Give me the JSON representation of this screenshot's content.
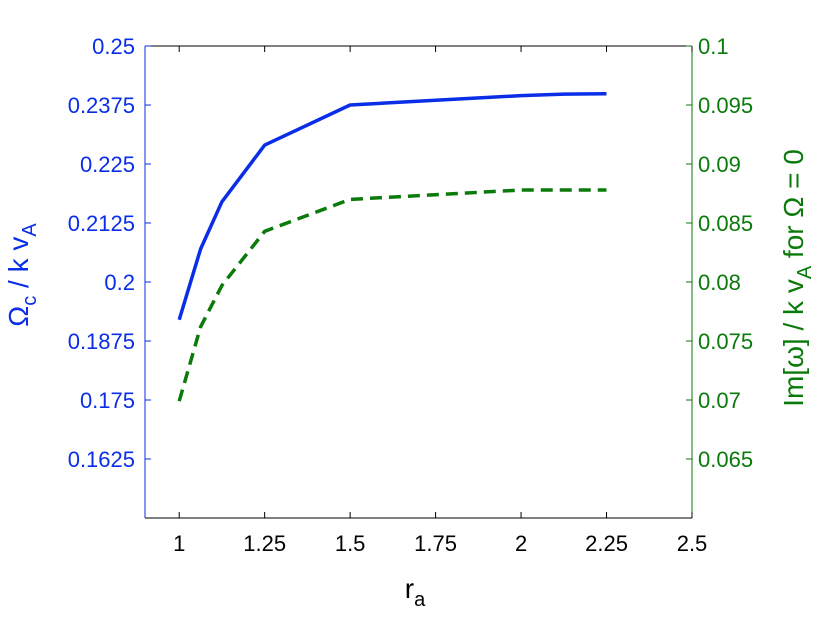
{
  "chart_data": {
    "type": "line",
    "x_ticks": [
      "1",
      "1.25",
      "1.5",
      "1.75",
      "2",
      "2.25",
      "2.5"
    ],
    "xlim": [
      0.9,
      2.5
    ],
    "xlabel": {
      "main": "r",
      "sub": "a"
    },
    "left_axis": {
      "ylim": [
        0.15,
        0.25
      ],
      "ticks": [
        "0.25",
        "0.2375",
        "0.225",
        "0.2125",
        "0.2",
        "0.1875",
        "0.175",
        "0.1625"
      ],
      "label": {
        "p1": "Ω",
        "p1_sub": "c",
        "p2": " / k v",
        "p2_sub": "A"
      },
      "color": "#0a2ee8"
    },
    "right_axis": {
      "ylim": [
        0.06,
        0.1
      ],
      "ticks": [
        "0.1",
        "0.095",
        "0.09",
        "0.085",
        "0.08",
        "0.075",
        "0.07",
        "0.065"
      ],
      "label": {
        "p1": "Im[ω] / k v",
        "p1_sub": "A",
        "p2": " for Ω = 0"
      },
      "color": "#0a7a0a"
    },
    "series": [
      {
        "axis": "left",
        "style": "solid",
        "color": "#0a2ee8",
        "x": [
          1.0,
          1.0625,
          1.125,
          1.25,
          1.5,
          1.75,
          2.0,
          2.125,
          2.25
        ],
        "y": [
          0.192,
          0.207,
          0.217,
          0.229,
          0.2375,
          0.2385,
          0.2395,
          0.2398,
          0.2399
        ]
      },
      {
        "axis": "right",
        "style": "dashed",
        "color": "#0a7a0a",
        "x": [
          1.0,
          1.0625,
          1.125,
          1.25,
          1.5,
          1.75,
          2.0,
          2.125,
          2.25
        ],
        "y": [
          0.0699,
          0.0762,
          0.0797,
          0.0843,
          0.087,
          0.0874,
          0.0878,
          0.0878,
          0.0878
        ]
      }
    ],
    "grid": false,
    "legend": "none"
  }
}
